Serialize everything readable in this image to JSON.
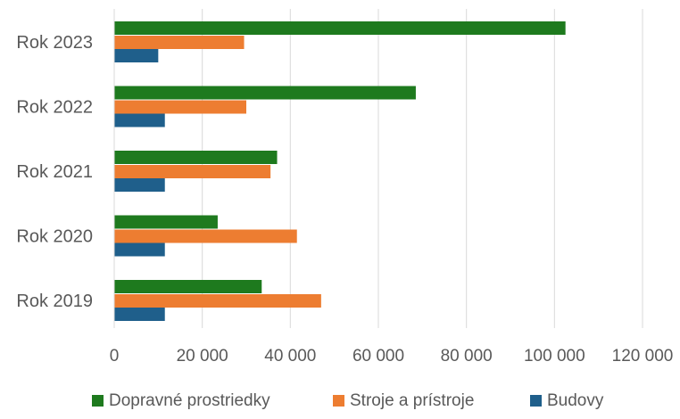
{
  "chart_data": {
    "type": "bar",
    "orientation": "horizontal",
    "title": "",
    "xlabel": "",
    "ylabel": "",
    "categories": [
      "Rok 2023",
      "Rok 2022",
      "Rok 2021",
      "Rok 2020",
      "Rok 2019"
    ],
    "series": [
      {
        "name": "Dopravné prostriedky",
        "color": "#1e7a1e",
        "values": [
          102500,
          68500,
          37000,
          23500,
          33500
        ]
      },
      {
        "name": "Stroje a prístroje",
        "color": "#ed7d31",
        "values": [
          29500,
          30000,
          35500,
          41500,
          47000
        ]
      },
      {
        "name": "Budovy",
        "color": "#1f5f8b",
        "values": [
          10000,
          11500,
          11500,
          11500,
          11500
        ]
      }
    ],
    "x_ticks": [
      "0",
      "20 000",
      "40 000",
      "60 000",
      "80 000",
      "100 000",
      "120 000"
    ],
    "xlim": [
      0,
      120000
    ],
    "grid": "vertical",
    "legend": "bottom"
  }
}
